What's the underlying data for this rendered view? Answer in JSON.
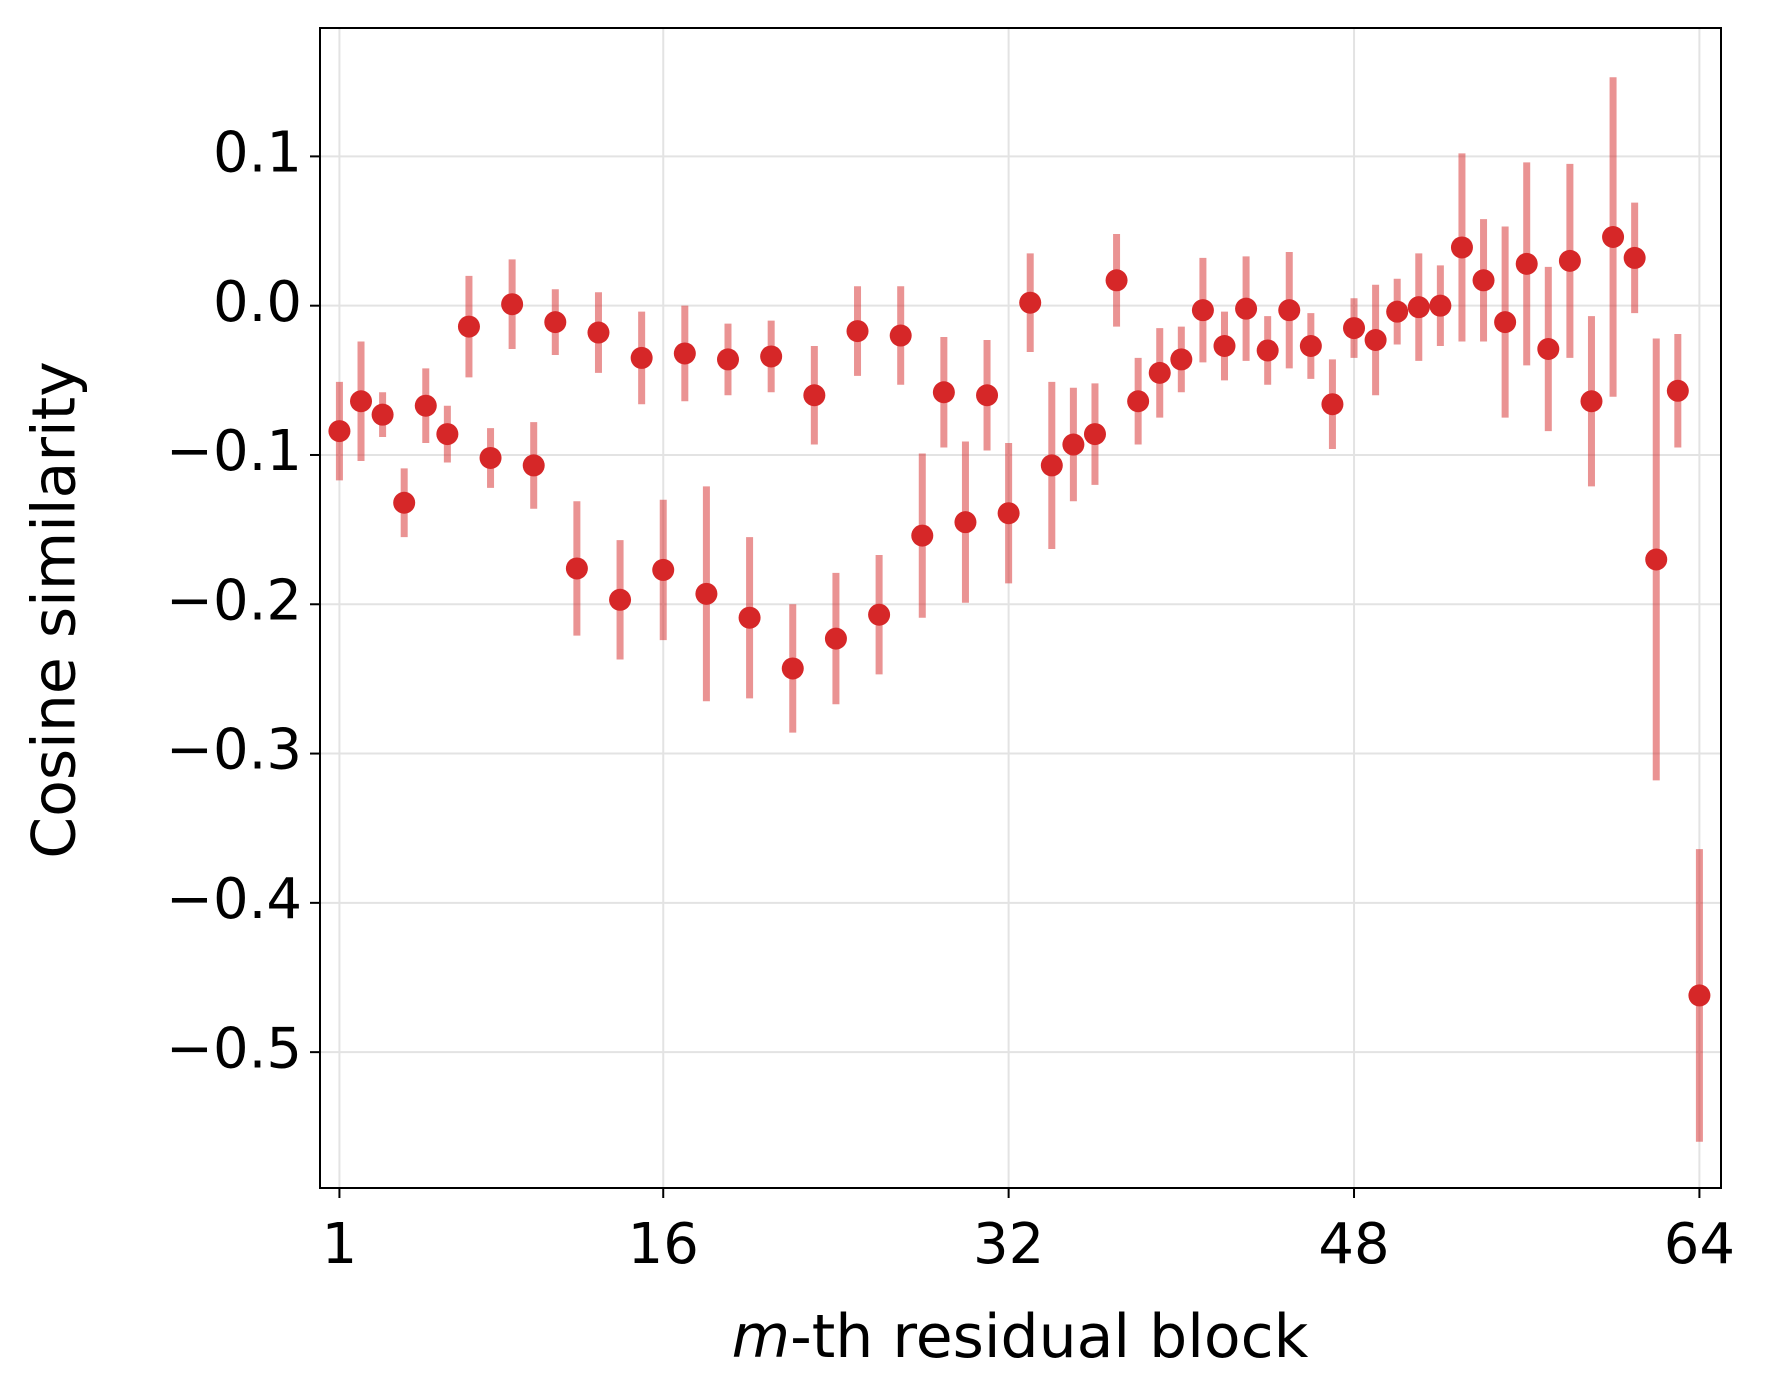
{
  "chart_data": {
    "type": "errorbar",
    "xlabel": "m-th residual block",
    "ylabel": "Cosine similarity",
    "x": [
      1,
      2,
      3,
      4,
      5,
      6,
      7,
      8,
      9,
      10,
      11,
      12,
      13,
      14,
      15,
      16,
      17,
      18,
      19,
      20,
      21,
      22,
      23,
      24,
      25,
      26,
      27,
      28,
      29,
      30,
      31,
      32,
      33,
      34,
      35,
      36,
      37,
      38,
      39,
      40,
      41,
      42,
      43,
      44,
      45,
      46,
      47,
      48,
      49,
      50,
      51,
      52,
      53,
      54,
      55,
      56,
      57,
      58,
      59,
      60,
      61,
      62,
      63,
      64
    ],
    "series": [
      {
        "color": "#d62728",
        "values": [
          -0.084,
          -0.064,
          -0.073,
          -0.132,
          -0.067,
          -0.086,
          -0.014,
          -0.102,
          0.001,
          -0.107,
          -0.011,
          -0.176,
          -0.018,
          -0.197,
          -0.035,
          -0.177,
          -0.032,
          -0.193,
          -0.036,
          -0.209,
          -0.034,
          -0.243,
          -0.06,
          -0.223,
          -0.017,
          -0.207,
          -0.02,
          -0.154,
          -0.058,
          -0.145,
          -0.06,
          -0.139,
          0.002,
          -0.107,
          -0.093,
          -0.086,
          0.017,
          -0.064,
          -0.045,
          -0.036,
          -0.003,
          -0.027,
          -0.002,
          -0.03,
          -0.003,
          -0.027,
          -0.066,
          -0.015,
          -0.023,
          -0.004,
          -0.001,
          0.0,
          0.039,
          0.017,
          -0.011,
          0.028,
          -0.029,
          0.03,
          -0.064,
          0.046,
          0.032,
          -0.17,
          -0.057,
          -0.462
        ],
        "errors": [
          0.033,
          0.04,
          0.015,
          0.023,
          0.025,
          0.019,
          0.034,
          0.02,
          0.03,
          0.029,
          0.022,
          0.045,
          0.027,
          0.04,
          0.031,
          0.047,
          0.032,
          0.072,
          0.024,
          0.054,
          0.024,
          0.043,
          0.033,
          0.044,
          0.03,
          0.04,
          0.033,
          0.055,
          0.037,
          0.054,
          0.037,
          0.047,
          0.033,
          0.056,
          0.038,
          0.034,
          0.031,
          0.029,
          0.03,
          0.022,
          0.035,
          0.023,
          0.035,
          0.023,
          0.039,
          0.022,
          0.03,
          0.02,
          0.037,
          0.022,
          0.036,
          0.027,
          0.063,
          0.041,
          0.064,
          0.068,
          0.055,
          0.065,
          0.057,
          0.107,
          0.037,
          0.148,
          0.038,
          0.098
        ]
      }
    ],
    "xlim": [
      0.1,
      65.0
    ],
    "ylim": [
      -0.591,
      0.186
    ],
    "xticks": [
      1,
      16,
      32,
      48,
      64
    ],
    "yticks": [
      {
        "value": -0.5,
        "label": "−0.5"
      },
      {
        "value": -0.4,
        "label": "−0.4"
      },
      {
        "value": -0.3,
        "label": "−0.3"
      },
      {
        "value": -0.2,
        "label": "−0.2"
      },
      {
        "value": -0.1,
        "label": "−0.1"
      },
      {
        "value": 0.0,
        "label": "0.0"
      },
      {
        "value": 0.1,
        "label": "0.1"
      }
    ],
    "grid": true
  }
}
